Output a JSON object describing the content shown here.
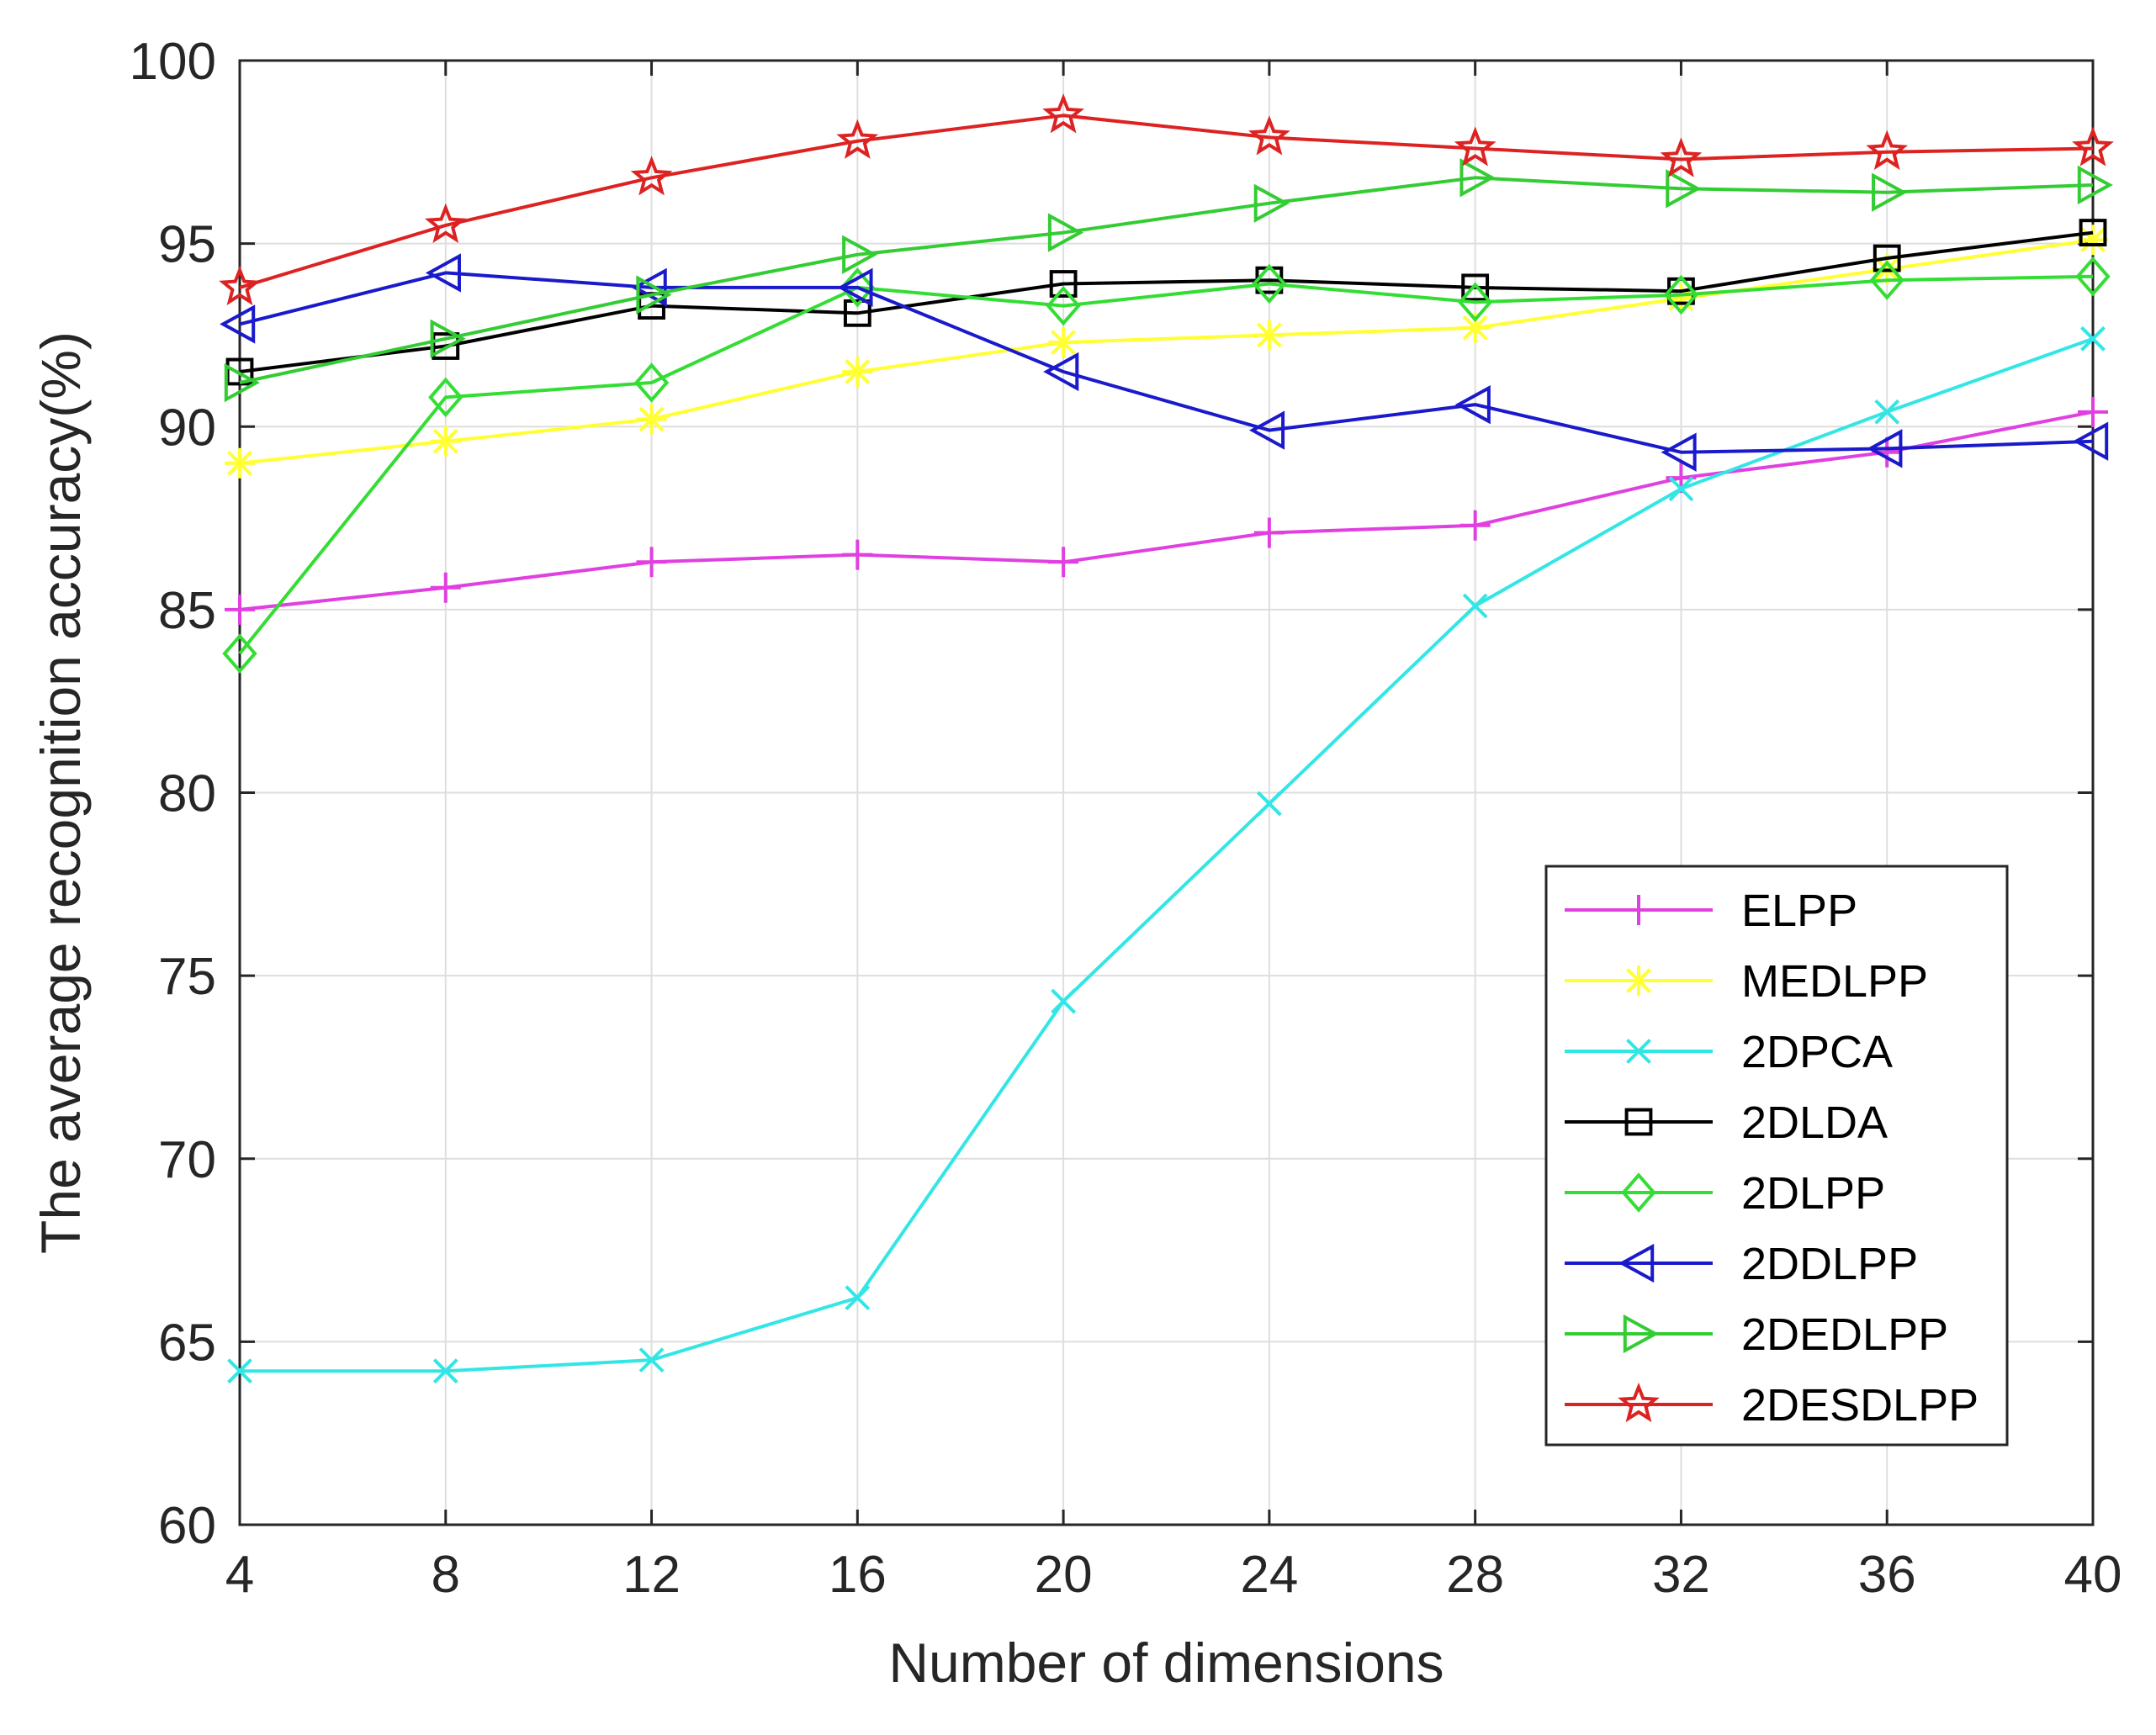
{
  "chart_data": {
    "type": "line",
    "title": "",
    "xlabel": "Number of dimensions",
    "ylabel": "The average recognition accuracy(%)",
    "x": [
      4,
      8,
      12,
      16,
      20,
      24,
      28,
      32,
      36,
      40
    ],
    "xlim": [
      4,
      40
    ],
    "ylim": [
      60,
      100
    ],
    "xticks": [
      "4",
      "8",
      "12",
      "16",
      "20",
      "24",
      "28",
      "32",
      "36",
      "40"
    ],
    "yticks": [
      "60",
      "65",
      "70",
      "75",
      "80",
      "85",
      "90",
      "95",
      "100"
    ],
    "grid": true,
    "legend_position": "bottom-right",
    "series": [
      {
        "name": "ELPP",
        "color": "#e040e0",
        "marker": "plus",
        "values": [
          85.0,
          85.6,
          86.3,
          86.5,
          86.3,
          87.1,
          87.3,
          88.6,
          89.3,
          90.4
        ]
      },
      {
        "name": "MEDLPP",
        "color": "#ffff33",
        "marker": "asterisk",
        "values": [
          89.0,
          89.6,
          90.2,
          91.5,
          92.3,
          92.5,
          92.7,
          93.5,
          94.3,
          95.1
        ]
      },
      {
        "name": "2DPCA",
        "color": "#33e6e6",
        "marker": "cross",
        "values": [
          64.2,
          64.2,
          64.5,
          66.2,
          74.3,
          79.7,
          85.1,
          88.3,
          90.4,
          92.4
        ]
      },
      {
        "name": "2DLDA",
        "color": "#000000",
        "marker": "square",
        "values": [
          91.5,
          92.2,
          93.3,
          93.1,
          93.9,
          94.0,
          93.8,
          93.7,
          94.6,
          95.3
        ]
      },
      {
        "name": "2DLPP",
        "color": "#33dd33",
        "marker": "diamond",
        "values": [
          83.8,
          90.8,
          91.2,
          93.8,
          93.3,
          93.9,
          93.4,
          93.6,
          94.0,
          94.1
        ]
      },
      {
        "name": "2DDLPP",
        "color": "#1a1acc",
        "marker": "triangle-left",
        "values": [
          92.8,
          94.2,
          93.8,
          93.8,
          91.5,
          89.9,
          90.6,
          89.3,
          89.4,
          89.6
        ]
      },
      {
        "name": "2DEDLPP",
        "color": "#33cc33",
        "marker": "triangle-right",
        "values": [
          91.2,
          92.4,
          93.6,
          94.7,
          95.3,
          96.1,
          96.8,
          96.5,
          96.4,
          96.6
        ]
      },
      {
        "name": "2DESDLPP",
        "color": "#dd2222",
        "marker": "pentagram",
        "values": [
          93.8,
          95.5,
          96.8,
          97.8,
          98.5,
          97.9,
          97.6,
          97.3,
          97.5,
          97.6
        ]
      }
    ]
  }
}
